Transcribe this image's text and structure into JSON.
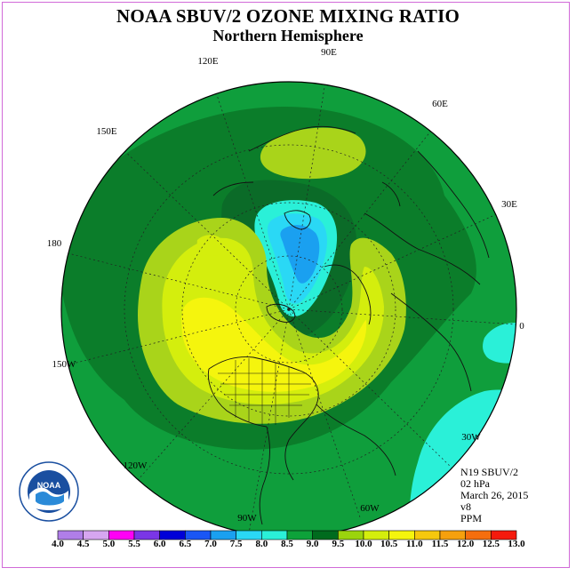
{
  "header": {
    "title": "NOAA SBUV/2 OZONE MIXING RATIO",
    "subtitle": "Northern Hemisphere"
  },
  "map": {
    "type": "polar-stereographic",
    "hemisphere": "north",
    "longitude_labels": [
      "90E",
      "60E",
      "30E",
      "0",
      "30W",
      "60W",
      "90W",
      "120W",
      "150W",
      "180",
      "150E",
      "120E"
    ],
    "field": "ozone mixing ratio",
    "features": [
      {
        "name": "low-ozone-core",
        "min_value": 7.0,
        "description_color": "#1aa0f0"
      },
      {
        "name": "eurasian-maximum",
        "max_value": 10.5
      },
      {
        "name": "pacific-atlantic-maximum",
        "max_value": 10.5
      }
    ]
  },
  "info": {
    "instrument": "N19 SBUV/2",
    "level": "02 hPa",
    "date": "March 26, 2015",
    "version": "v8",
    "units": "PPM"
  },
  "colorbar": {
    "labels": [
      "4.0",
      "4.5",
      "5.0",
      "5.5",
      "6.0",
      "6.5",
      "7.0",
      "7.5",
      "8.0",
      "8.5",
      "9.0",
      "9.5",
      "10.0",
      "10.5",
      "11.0",
      "11.5",
      "12.0",
      "12.5",
      "13.0"
    ],
    "colors": [
      "#b07ee8",
      "#d6a6f0",
      "#ff00f5",
      "#7a36e6",
      "#0000d8",
      "#1a56f5",
      "#1aa0f0",
      "#2ad8f5",
      "#2af0d8",
      "#0da23a",
      "#006b1e",
      "#9bd40d",
      "#d4ee0d",
      "#f5f50d",
      "#f5c80d",
      "#f5a00d",
      "#f56e0d",
      "#f51a0d",
      "#8a4a2a"
    ]
  },
  "logo": {
    "text": "NOAA",
    "ring_text": "NATIONAL OCEANIC AND ATMOSPHERIC ADMINISTRATION · U.S. DEPARTMENT OF COMMERCE"
  }
}
